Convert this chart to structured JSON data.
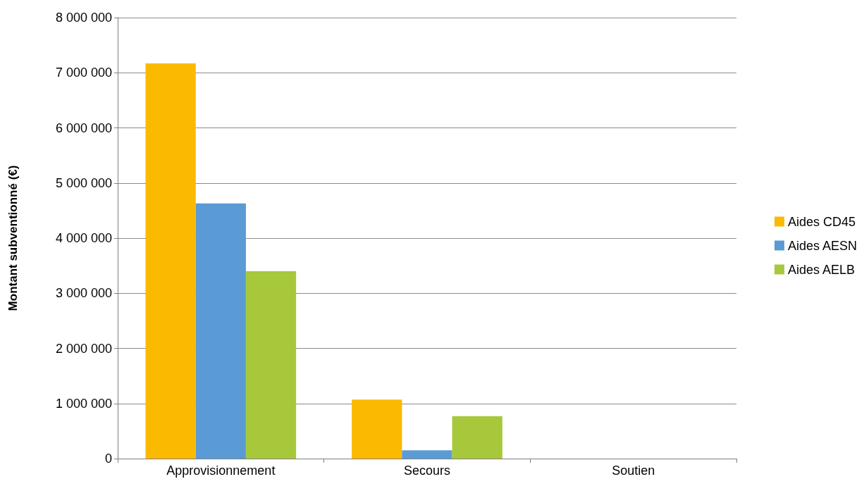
{
  "chart_data": {
    "type": "bar",
    "ylabel": "Montant subventionné (€)",
    "categories": [
      "Approvisionnement",
      "Secours",
      "Soutien"
    ],
    "series": [
      {
        "name": "Aides CD45",
        "color": "#fbb900",
        "values": [
          7170000,
          1070000,
          0
        ]
      },
      {
        "name": "Aides AESN",
        "color": "#5b9bd5",
        "values": [
          4630000,
          150000,
          0
        ]
      },
      {
        "name": "Aides AELB",
        "color": "#a6c83a",
        "values": [
          3400000,
          770000,
          0
        ]
      }
    ],
    "ylim": [
      0,
      8000000
    ],
    "yticks": [
      {
        "value": 0,
        "label": "0"
      },
      {
        "value": 1000000,
        "label": "1 000 000"
      },
      {
        "value": 2000000,
        "label": "2 000 000"
      },
      {
        "value": 3000000,
        "label": "3 000 000"
      },
      {
        "value": 4000000,
        "label": "4 000 000"
      },
      {
        "value": 5000000,
        "label": "5 000 000"
      },
      {
        "value": 6000000,
        "label": "6 000 000"
      },
      {
        "value": 7000000,
        "label": "7 000 000"
      },
      {
        "value": 8000000,
        "label": "8 000 000"
      }
    ],
    "grid": "y",
    "legend": "right"
  }
}
